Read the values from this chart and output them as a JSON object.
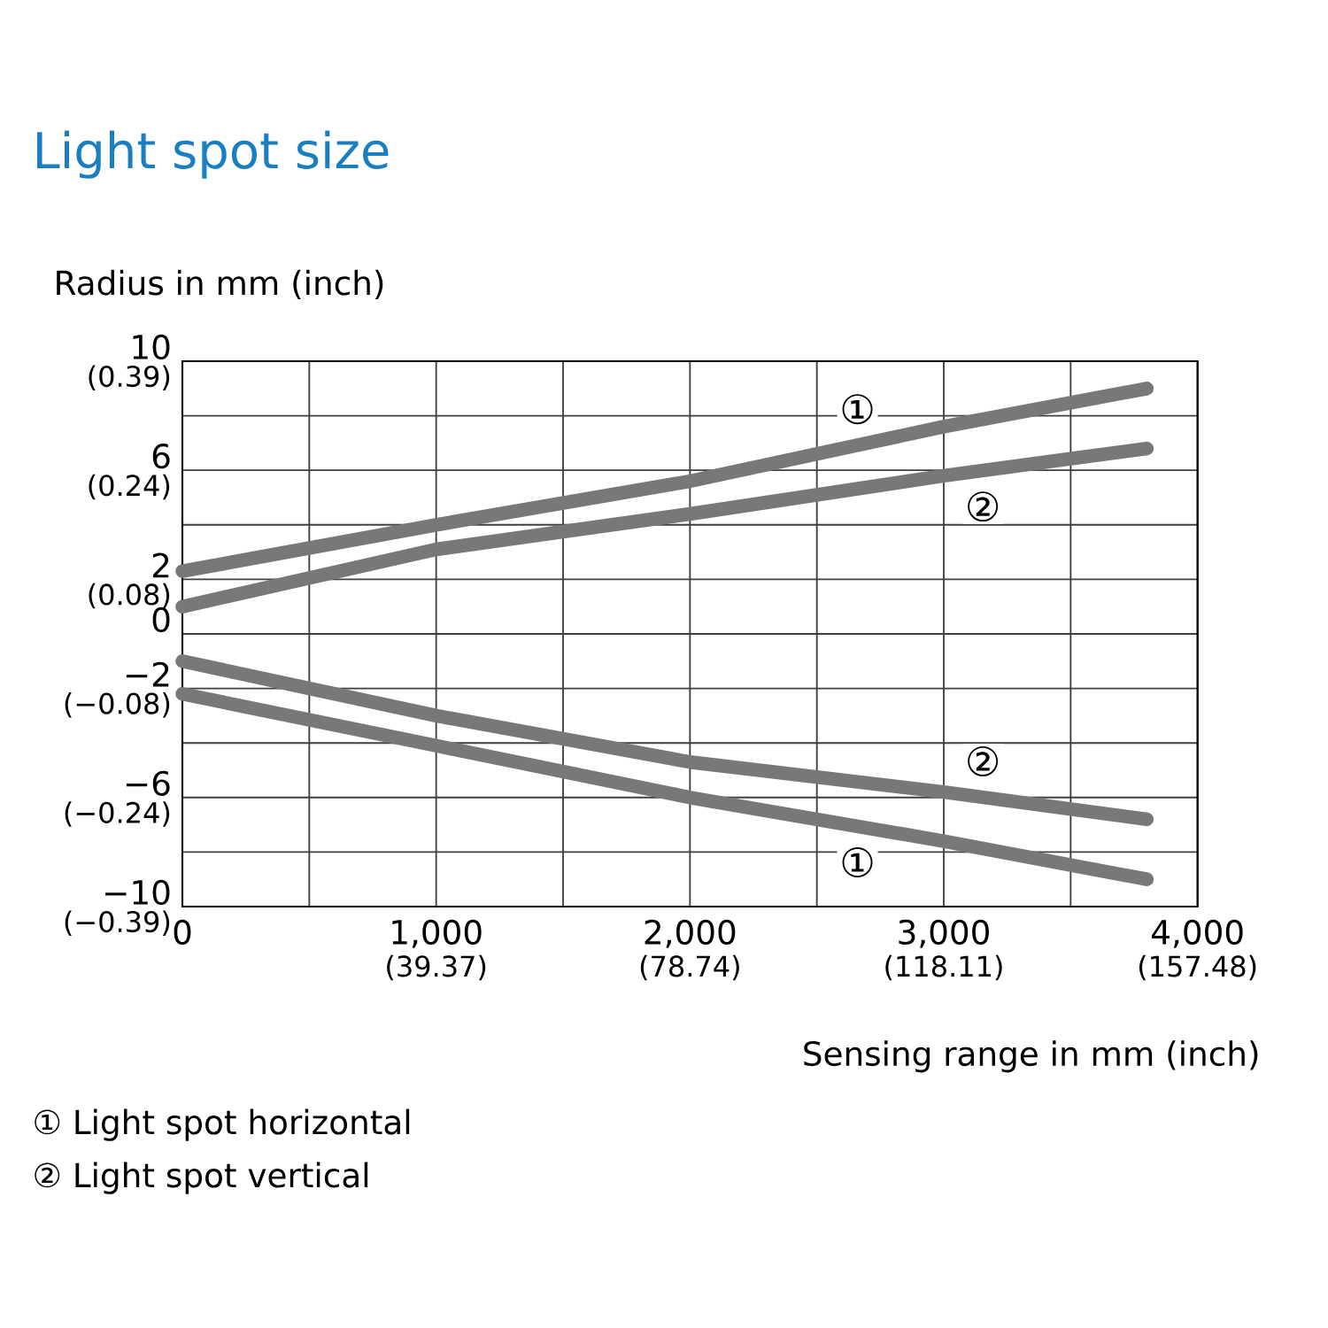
{
  "chart_data": {
    "type": "line",
    "title": "Light spot size",
    "xlabel": "Sensing range in mm (inch)",
    "ylabel": "Radius in mm (inch)",
    "x": [
      0,
      1000,
      2000,
      3000,
      3800
    ],
    "series": [
      {
        "name": "①",
        "color": "#787878",
        "values": [
          2.3,
          4.0,
          5.6,
          7.6,
          9.0
        ]
      },
      {
        "name": "②",
        "color": "#787878",
        "values": [
          1.0,
          3.1,
          4.4,
          5.8,
          6.8
        ]
      },
      {
        "name": "②",
        "color": "#787878",
        "values": [
          -1.0,
          -3.0,
          -4.7,
          -5.8,
          -6.8
        ]
      },
      {
        "name": "①",
        "color": "#787878",
        "values": [
          -2.2,
          -4.1,
          -6.0,
          -7.6,
          -9.0
        ]
      }
    ],
    "xlim": [
      0,
      4000
    ],
    "ylim": [
      -10,
      10
    ],
    "xticks": [
      0,
      {
        "value": 500,
        "label": null
      },
      {
        "value": 1000,
        "label": "1,000"
      },
      {
        "value": 1500,
        "label": null
      },
      {
        "value": 2000,
        "label": "2,000"
      },
      {
        "value": 2500,
        "label": null
      },
      {
        "value": 3000,
        "label": "3,000"
      },
      {
        "value": 3500,
        "label": null
      },
      {
        "value": 4000,
        "label": "4,000"
      }
    ],
    "yticks": [
      {
        "value": -10,
        "label": "−10"
      },
      {
        "value": -8,
        "label": null
      },
      {
        "value": -6,
        "label": "−6"
      },
      {
        "value": -4,
        "label": null
      },
      {
        "value": -2,
        "label": "−2"
      },
      0,
      2,
      {
        "value": 4,
        "label": null
      },
      6,
      {
        "value": 8,
        "label": null
      },
      10
    ],
    "x2lim": [
      0,
      157.48
    ],
    "x2ticks": [
      {
        "value": 39.37,
        "label": "(39.37)"
      },
      {
        "value": 78.74,
        "label": "(78.74)"
      },
      {
        "value": 118.11,
        "label": "(118.11)"
      },
      {
        "value": 157.48,
        "label": "(157.48)"
      }
    ],
    "y2lim": [
      -0.3937,
      0.3937
    ],
    "y2ticks": [
      {
        "value": -0.3937,
        "label": "(−0.39)"
      },
      {
        "value": -0.2362,
        "label": "(−0.24)"
      },
      {
        "value": -0.0787,
        "label": "(−0.08)"
      },
      {
        "value": 0.0787,
        "label": "(0.08)"
      },
      {
        "value": 0.2362,
        "label": "(0.24)"
      },
      {
        "value": 0.3937,
        "label": "(0.39)"
      }
    ],
    "grid": true,
    "marker": "none",
    "line_style": "solid",
    "annotations": [
      "① Light spot horizontal",
      "② Light spot vertical"
    ]
  }
}
